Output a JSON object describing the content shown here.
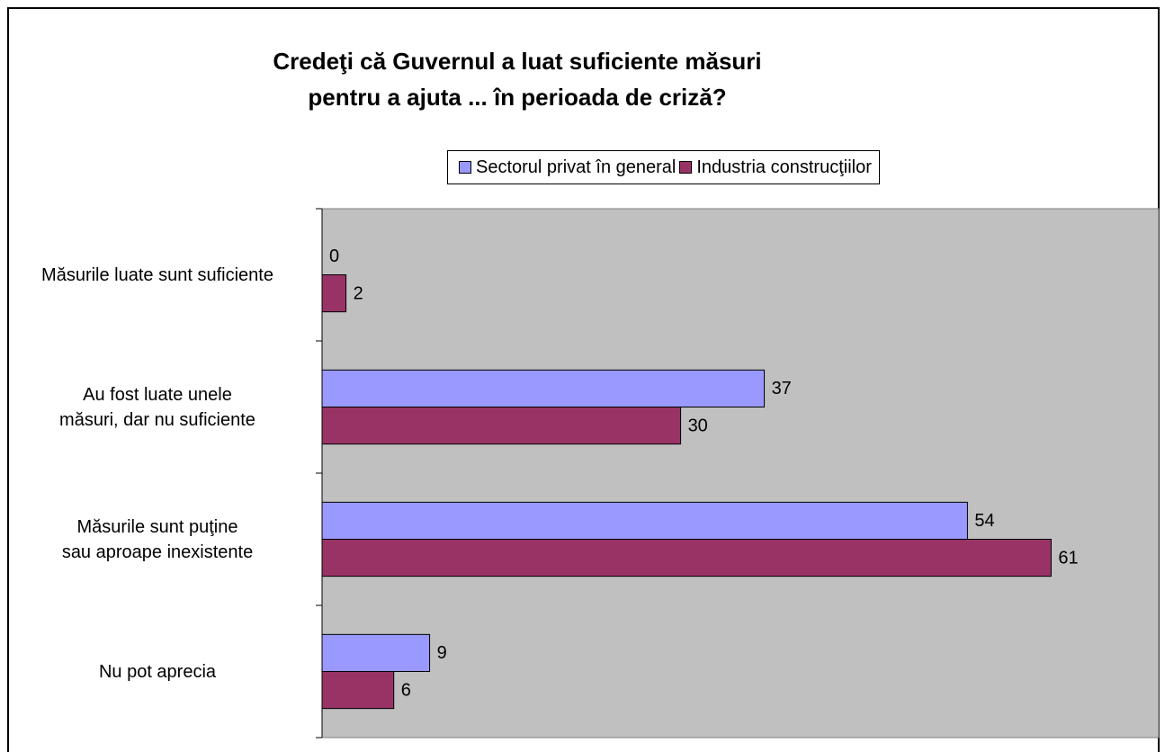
{
  "chart_data": {
    "type": "hbar",
    "title": "Credeţi că Guvernul a luat suficiente măsuri pentru a ajuta ... în perioada de criză?",
    "categories": [
      "Măsurile luate sunt suficiente",
      "Au fost luate unele măsuri, dar nu suficiente",
      "Măsurile sunt puţine sau aproape inexistente",
      "Nu pot aprecia"
    ],
    "series": [
      {
        "name": "Sectorul privat în general",
        "color": "#9999ff",
        "values": [
          0,
          37,
          54,
          9
        ]
      },
      {
        "name": "Industria construcţiilor",
        "color": "#993366",
        "values": [
          2,
          30,
          61,
          6
        ]
      }
    ],
    "xlim": [
      0,
      70
    ],
    "plot_background": "#c0c0c0"
  }
}
